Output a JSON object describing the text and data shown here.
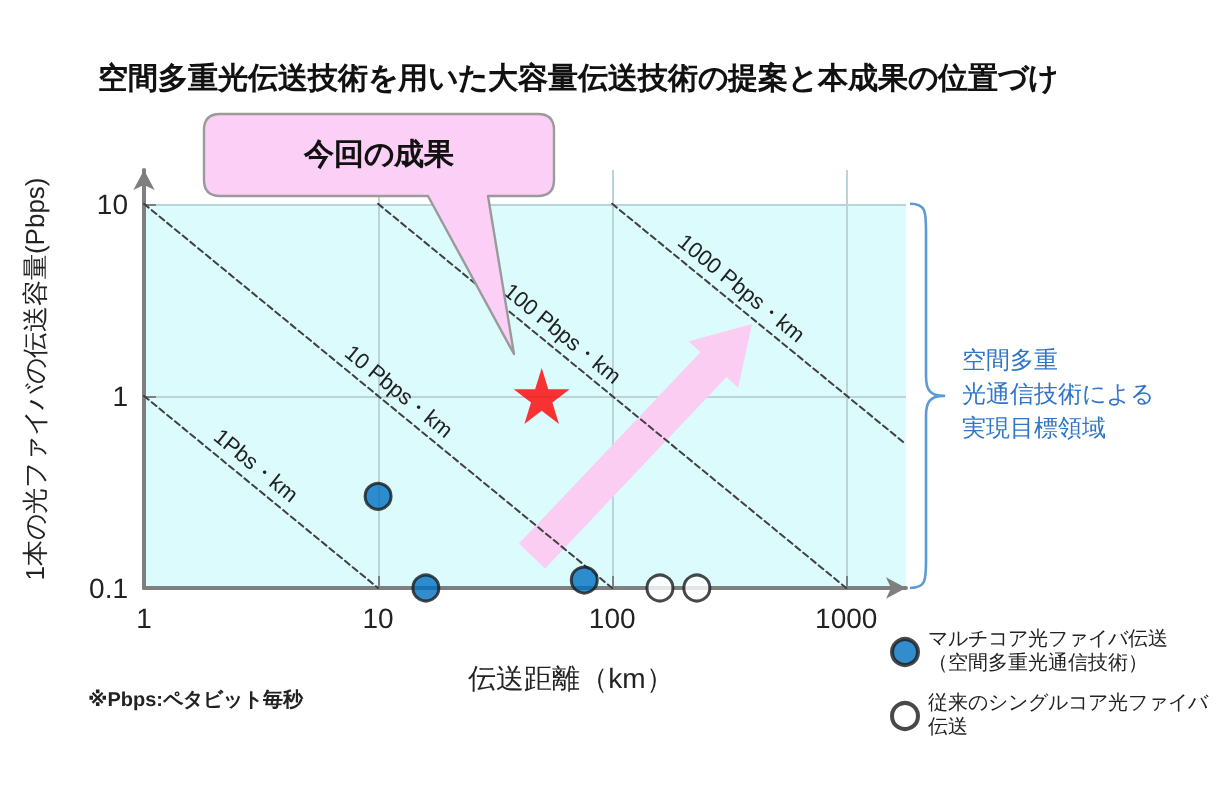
{
  "chart_data": {
    "type": "scatter",
    "title": "空間多重光伝送技術を用いた大容量伝送技術の提案と本成果の位置づけ",
    "xlabel": "伝送距離（km）",
    "ylabel": "1本の光ファイバの伝送容量(Pbps)",
    "log": "xy",
    "xlim": [
      1,
      1800
    ],
    "ylim": [
      0.1,
      15
    ],
    "xticks": [
      1,
      10,
      100,
      1000
    ],
    "yticks": [
      0.1,
      1,
      10
    ],
    "grid": true,
    "legend": "bottom right",
    "series": [
      {
        "type": "line",
        "x": [
          1,
          10
        ],
        "values": [
          1,
          0.1
        ],
        "color": "#404040",
        "line_style": "dashed",
        "marker": "none"
      },
      {
        "type": "line",
        "x": [
          1,
          100
        ],
        "values": [
          10,
          0.1
        ],
        "color": "#404040",
        "line_style": "dashed",
        "marker": "none"
      },
      {
        "type": "line",
        "x": [
          10,
          1000
        ],
        "values": [
          10,
          0.1
        ],
        "color": "#404040",
        "line_style": "dashed",
        "marker": "none"
      },
      {
        "type": "line",
        "x": [
          100,
          1800
        ],
        "values": [
          10,
          0.56
        ],
        "color": "#404040",
        "line_style": "dashed",
        "marker": "none"
      },
      {
        "name": "マルチコア光ファイバ伝送（空間多重光通信技術）",
        "color": "#0070c0",
        "x": [
          10,
          16,
          76
        ],
        "values": [
          0.3,
          0.1,
          0.11
        ],
        "marker": "circle"
      },
      {
        "color": "#ff0000",
        "x": [
          50
        ],
        "values": [
          1
        ],
        "marker": "star"
      },
      {
        "name": "従来のシングルコア光ファイバ伝送",
        "color": "#ffffff",
        "x": [
          160,
          230
        ],
        "values": [
          0.1,
          0.1
        ],
        "marker": "circle"
      }
    ],
    "bands": [
      {
        "axis": "y",
        "from": 0.1,
        "to": 10,
        "label": "空間多重光通信技術による実現目標領域",
        "color": "#dbfbfd"
      }
    ],
    "annotations": [
      {
        "text": "1Pbs・km",
        "x": 2.7,
        "y": 0.37
      },
      {
        "text": "10 Pbps・km",
        "x": 11,
        "y": 0.9
      },
      {
        "text": "100 Pbps・km",
        "x": 55,
        "y": 1.8
      },
      {
        "text": "1000 Pbps・km",
        "x": 320,
        "y": 3.1
      },
      "今回の成果",
      "※Pbps:ペタビット毎秒"
    ]
  }
}
